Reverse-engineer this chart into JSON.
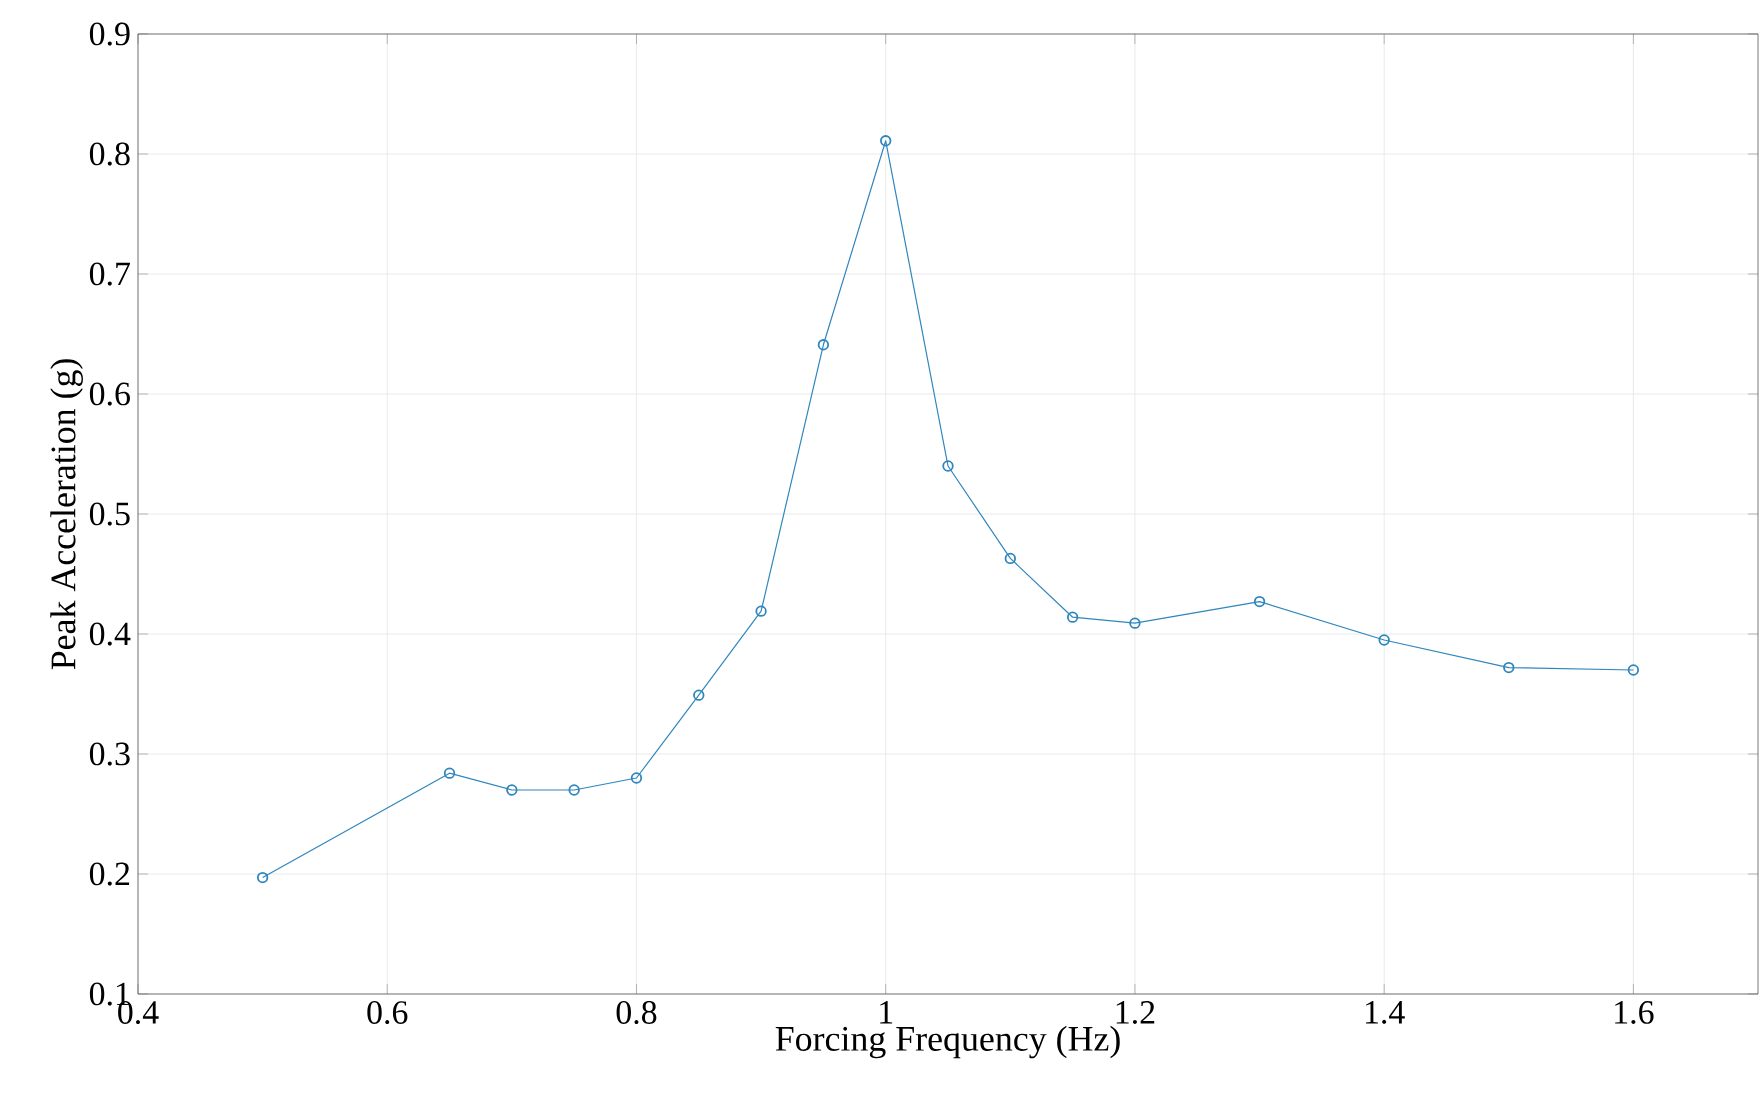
{
  "chart_data": {
    "type": "line",
    "xlabel": "Forcing Frequency (Hz)",
    "ylabel": "Peak Acceleration (g)",
    "x": [
      0.5,
      0.65,
      0.7,
      0.75,
      0.8,
      0.85,
      0.9,
      0.95,
      1.0,
      1.05,
      1.1,
      1.15,
      1.2,
      1.3,
      1.4,
      1.5,
      1.6
    ],
    "series": [
      {
        "color": "#2f86bd",
        "values": [
          0.197,
          0.284,
          0.27,
          0.27,
          0.28,
          0.349,
          0.419,
          0.641,
          0.811,
          0.54,
          0.463,
          0.414,
          0.409,
          0.427,
          0.395,
          0.372,
          0.37
        ]
      }
    ],
    "xlim": [
      0.4,
      1.7
    ],
    "ylim": [
      0.1,
      0.9
    ],
    "xticks": [
      0.4,
      0.6,
      0.8,
      1,
      1.2,
      1.4,
      1.6
    ],
    "yticks": [
      0.1,
      0.2,
      0.3,
      0.4,
      0.5,
      0.6,
      0.7,
      0.8,
      0.9
    ],
    "grid": true,
    "marker": "circle",
    "line_style": "solid"
  }
}
